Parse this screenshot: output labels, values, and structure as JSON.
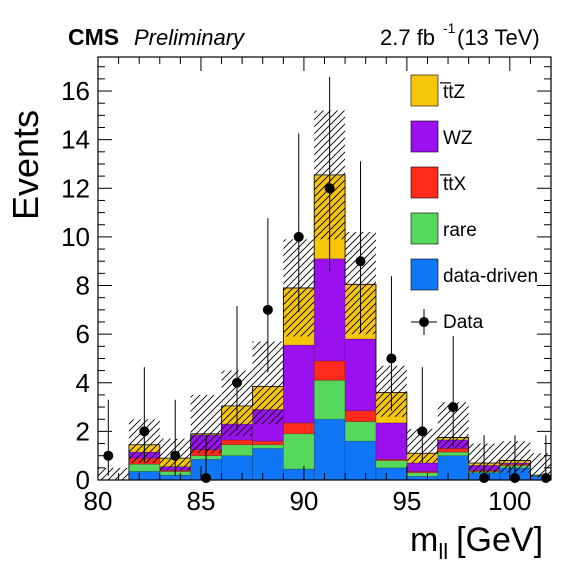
{
  "header": {
    "experiment": "CMS",
    "status": "Preliminary",
    "lumi_value": "2.7 fb",
    "lumi_exp": "-1",
    "energy": "(13 TeV)"
  },
  "chart_data": {
    "type": "bar",
    "stacked": true,
    "xlabel_main": "m",
    "xlabel_sub": "ll",
    "xlabel_unit": "[GeV]",
    "ylabel": "Events",
    "xlim": [
      80,
      102
    ],
    "ylim": [
      0,
      17.4
    ],
    "x_ticks": [
      80,
      85,
      90,
      95,
      100
    ],
    "y_ticks": [
      0,
      2,
      4,
      6,
      8,
      10,
      12,
      14,
      16
    ],
    "bin_edges": [
      79.5,
      81.5,
      83.0,
      84.5,
      86.0,
      87.5,
      89.0,
      90.5,
      92.0,
      93.5,
      95.0,
      96.5,
      98.0,
      99.5,
      101.0,
      102.5
    ],
    "series": [
      {
        "name": "data-driven",
        "color": "#0f76f5",
        "values": [
          0.0,
          0.35,
          0.2,
          0.85,
          1.0,
          1.3,
          0.45,
          2.5,
          1.6,
          0.5,
          0.15,
          1.0,
          0.3,
          0.5,
          0.15
        ]
      },
      {
        "name": "rare",
        "color": "#55d85b",
        "values": [
          0.0,
          0.3,
          0.15,
          0.15,
          0.45,
          0.15,
          1.45,
          1.6,
          0.8,
          0.3,
          0.15,
          0.15,
          0.05,
          0.1,
          0.05
        ]
      },
      {
        "name": "t̅tX",
        "color": "#ff2b1d",
        "values": [
          0.0,
          0.25,
          0.05,
          0.25,
          0.2,
          0.15,
          0.45,
          0.8,
          0.45,
          0.05,
          0.05,
          0.15,
          0.05,
          0.05,
          0.0
        ]
      },
      {
        "name": "WZ",
        "color": "#9b10ee",
        "values": [
          0.0,
          0.25,
          0.15,
          0.6,
          0.65,
          1.3,
          3.2,
          4.2,
          2.95,
          1.5,
          0.35,
          0.35,
          0.2,
          0.05,
          0.0
        ]
      },
      {
        "name": "t̅tZ",
        "color": "#f6c60b",
        "values": [
          0.0,
          0.3,
          0.35,
          0.05,
          0.75,
          0.95,
          2.35,
          3.45,
          2.25,
          1.25,
          0.4,
          0.1,
          0.1,
          0.1,
          0.0
        ]
      }
    ],
    "uncertainty_band": {
      "low": [
        0.0,
        0.7,
        0.4,
        1.1,
        1.8,
        2.3,
        5.9,
        9.9,
        6.0,
        2.6,
        0.7,
        1.3,
        0.3,
        0.3,
        0.1
      ],
      "high": [
        0.5,
        2.5,
        1.7,
        3.5,
        4.5,
        5.7,
        9.9,
        15.2,
        10.2,
        4.7,
        2.1,
        3.2,
        1.5,
        1.6,
        1.1
      ]
    },
    "data_points": {
      "name": "Data",
      "x": [
        80.5,
        82.25,
        83.75,
        85.25,
        86.75,
        88.25,
        89.75,
        91.25,
        92.75,
        94.25,
        95.75,
        97.25,
        98.75,
        100.25,
        101.75
      ],
      "y": [
        1,
        2,
        1,
        0,
        4,
        7,
        10,
        12,
        9,
        5,
        2,
        3,
        0,
        0,
        0
      ],
      "err_low": [
        0.83,
        1.29,
        0.83,
        0,
        1.94,
        2.58,
        3.1,
        3.41,
        2.94,
        2.16,
        1.29,
        1.63,
        0,
        0,
        0
      ],
      "err_high": [
        2.3,
        2.64,
        2.3,
        1.84,
        3.16,
        3.77,
        4.26,
        4.58,
        4.11,
        3.38,
        2.64,
        2.92,
        1.84,
        1.84,
        1.84
      ]
    },
    "legend_order": [
      "t̅tZ",
      "WZ",
      "t̅tX",
      "rare",
      "data-driven",
      "Data"
    ],
    "legend_position": "top-right",
    "grid": false
  }
}
